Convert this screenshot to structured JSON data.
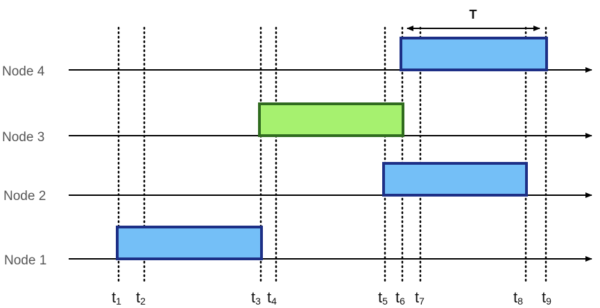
{
  "nodes": [
    {
      "label": "Node 4"
    },
    {
      "label": "Node 3"
    },
    {
      "label": "Node 2"
    },
    {
      "label": "Node 1"
    }
  ],
  "time_markers": [
    {
      "main": "t",
      "sub": "1"
    },
    {
      "main": "t",
      "sub": "2"
    },
    {
      "main": "t",
      "sub": "3"
    },
    {
      "main": "t",
      "sub": "4"
    },
    {
      "main": "t",
      "sub": "5"
    },
    {
      "main": "t",
      "sub": "6"
    },
    {
      "main": "t",
      "sub": "7"
    },
    {
      "main": "t",
      "sub": "8"
    },
    {
      "main": "t",
      "sub": "9"
    }
  ],
  "intervals": [
    {
      "node": "Node 1",
      "start": "t1",
      "end": "t3",
      "color": "#74bff7",
      "border": "#1d2f86"
    },
    {
      "node": "Node 2",
      "start": "t5",
      "end": "t8",
      "color": "#74bff7",
      "border": "#1d2f86"
    },
    {
      "node": "Node 3",
      "start": "t3",
      "end": "t6",
      "color": "#a6f16f",
      "border": "#2f6b1e"
    },
    {
      "node": "Node 4",
      "start": "t6",
      "end": "t9",
      "color": "#74bff7",
      "border": "#1d2f86"
    }
  ],
  "period": {
    "label": "T",
    "from": "t6",
    "to": "t8"
  }
}
